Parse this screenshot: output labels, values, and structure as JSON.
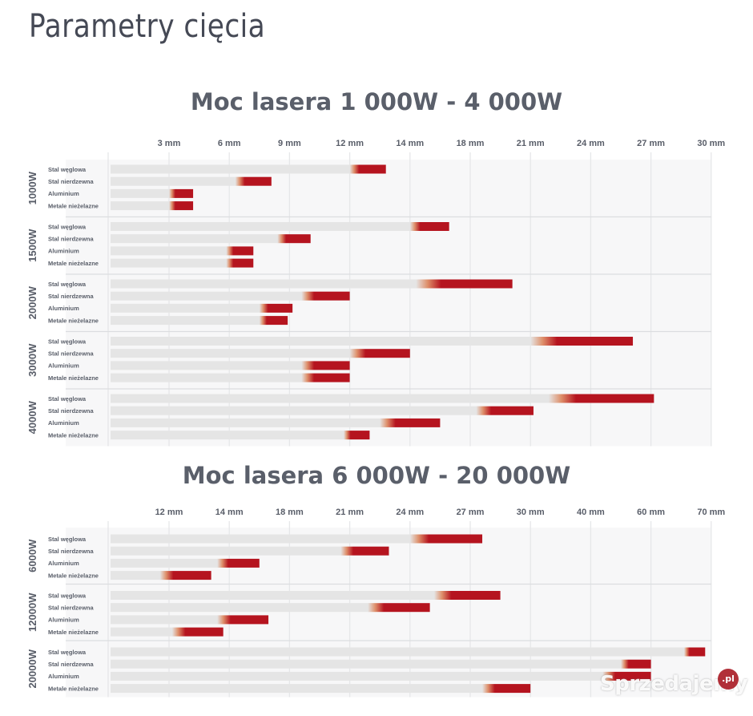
{
  "page": {
    "title": "Parametry cięcia"
  },
  "legend_rows": [
    "Stal węglowa",
    "Stal nierdzewna",
    "Aluminium",
    "Metale nieżelazne"
  ],
  "colors": {
    "bar_base": "#e5e5e5",
    "bar_highlight": "#b5141f",
    "panel": "#f7f7f8",
    "grid": "#e6e7e9",
    "text": "#585d68"
  },
  "watermark": {
    "text": "Sprzedajemy",
    "badge": ".pl"
  },
  "chart_data": [
    {
      "type": "bar",
      "orientation": "horizontal",
      "title": "Moc lasera 1 000W - 4 000W",
      "x_ticks": [
        "3 mm",
        "6 mm",
        "9 mm",
        "12 mm",
        "14 mm",
        "18 mm",
        "21 mm",
        "24 mm",
        "27 mm",
        "30 mm"
      ],
      "x_scale": "ordinal thickness ticks (index positions)",
      "materials": [
        "Stal węglowa",
        "Stal nierdzewna",
        "Aluminium",
        "Metale nieżelazne"
      ],
      "groups": [
        {
          "label": "1000W",
          "bars": [
            {
              "material": "Stal węglowa",
              "start": 3.0,
              "end": 3.6
            },
            {
              "material": "Stal nierdzewna",
              "start": 1.1,
              "end": 1.7
            },
            {
              "material": "Aluminium",
              "start": 0.0,
              "end": 0.4
            },
            {
              "material": "Metale nieżelazne",
              "start": 0.0,
              "end": 0.4
            }
          ]
        },
        {
          "label": "1500W",
          "bars": [
            {
              "material": "Stal węglowa",
              "start": 4.0,
              "end": 4.65
            },
            {
              "material": "Stal nierdzewna",
              "start": 1.8,
              "end": 2.35
            },
            {
              "material": "Aluminium",
              "start": 0.95,
              "end": 1.4
            },
            {
              "material": "Metale nieżelazne",
              "start": 0.95,
              "end": 1.4
            }
          ]
        },
        {
          "label": "2000W",
          "bars": [
            {
              "material": "Stal węglowa",
              "start": 4.1,
              "end": 5.7
            },
            {
              "material": "Stal nierdzewna",
              "start": 2.2,
              "end": 3.0
            },
            {
              "material": "Aluminium",
              "start": 1.5,
              "end": 2.05
            },
            {
              "material": "Metale nieżelazne",
              "start": 1.5,
              "end": 1.97
            }
          ]
        },
        {
          "label": "3000W",
          "bars": [
            {
              "material": "Stal węglowa",
              "start": 6.0,
              "end": 7.7
            },
            {
              "material": "Stal nierdzewna",
              "start": 3.0,
              "end": 4.0
            },
            {
              "material": "Aluminium",
              "start": 2.2,
              "end": 3.0
            },
            {
              "material": "Metale nieżelazne",
              "start": 2.2,
              "end": 3.0
            }
          ]
        },
        {
          "label": "4000W",
          "bars": [
            {
              "material": "Stal węglowa",
              "start": 6.3,
              "end": 8.05
            },
            {
              "material": "Stal nierdzewna",
              "start": 5.1,
              "end": 6.05
            },
            {
              "material": "Aluminium",
              "start": 3.5,
              "end": 4.5
            },
            {
              "material": "Metale nieżelazne",
              "start": 2.9,
              "end": 3.33
            }
          ]
        }
      ]
    },
    {
      "type": "bar",
      "orientation": "horizontal",
      "title": "Moc lasera 6 000W - 20 000W",
      "x_ticks": [
        "12 mm",
        "14 mm",
        "18 mm",
        "21 mm",
        "24 mm",
        "27 mm",
        "30 mm",
        "40 mm",
        "60 mm",
        "70 mm"
      ],
      "x_scale": "ordinal thickness ticks (index positions)",
      "materials": [
        "Stal węglowa",
        "Stal nierdzewna",
        "Aluminium",
        "Metale nieżelazne"
      ],
      "groups": [
        {
          "label": "6000W",
          "bars": [
            {
              "material": "Stal węglowa",
              "start": 4.0,
              "end": 5.2
            },
            {
              "material": "Stal nierdzewna",
              "start": 2.85,
              "end": 3.65
            },
            {
              "material": "Aluminium",
              "start": 0.8,
              "end": 1.5
            },
            {
              "material": "Metale nieżelazne",
              "start": -0.15,
              "end": 0.7
            }
          ]
        },
        {
          "label": "12000W",
          "bars": [
            {
              "material": "Stal węglowa",
              "start": 4.4,
              "end": 5.5
            },
            {
              "material": "Stal nierdzewna",
              "start": 3.3,
              "end": 4.33
            },
            {
              "material": "Aluminium",
              "start": 0.8,
              "end": 1.65
            },
            {
              "material": "Metale nieżelazne",
              "start": 0.05,
              "end": 0.9
            }
          ]
        },
        {
          "label": "20000W",
          "bars": [
            {
              "material": "Stal węglowa",
              "start": 8.55,
              "end": 8.9
            },
            {
              "material": "Stal nierdzewna",
              "start": 7.5,
              "end": 8.0
            },
            {
              "material": "Aluminium",
              "start": 7.2,
              "end": 8.0
            },
            {
              "material": "Metale nieżelazne",
              "start": 5.2,
              "end": 6.0
            }
          ]
        }
      ]
    }
  ]
}
